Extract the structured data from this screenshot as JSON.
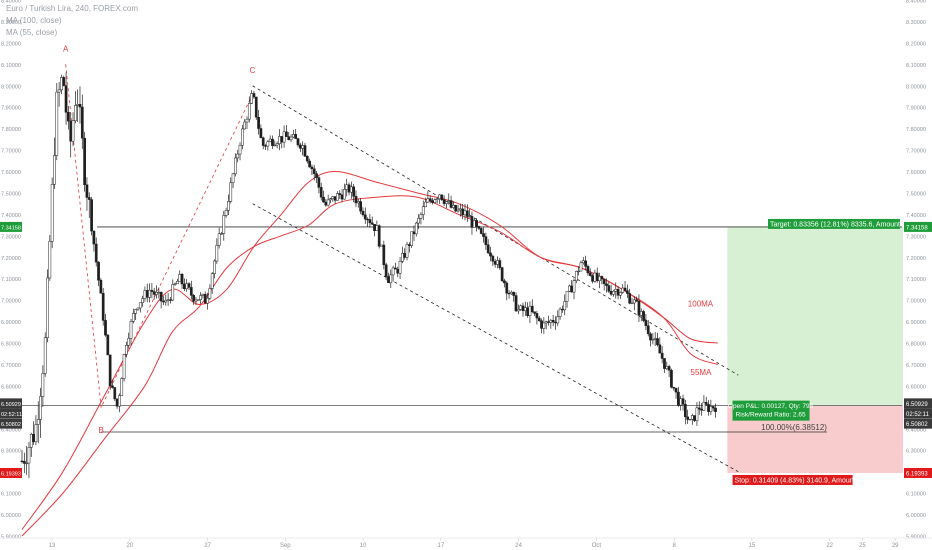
{
  "legend": {
    "symbol": "Euro / Turkish Lira, 240, FOREX.com",
    "ma1": "MA (100, close)",
    "ma2": "MA (55, close)"
  },
  "colors": {
    "candle": "#1f1f1f",
    "ma": "#e8383d",
    "target_fill": "#d7efd3",
    "stop_fill": "#f8cccc",
    "target_label": "#1f9d3a",
    "stop_label": "#e0191b",
    "axis_text": "#8d939a"
  },
  "chart_data": {
    "type": "candlestick",
    "symbol": "Euro / Turkish Lira, 240, FOREX.com",
    "ylim": [
      5.9,
      8.4
    ],
    "y_ticks": [
      "8.40000",
      "8.30000",
      "8.20000",
      "8.10000",
      "8.00000",
      "7.90000",
      "7.80000",
      "7.70000",
      "7.60000",
      "7.50000",
      "7.40000",
      "7.30000",
      "7.20000",
      "7.10000",
      "7.00000",
      "6.90000",
      "6.80000",
      "6.70000",
      "6.60000",
      "6.50000",
      "6.40000",
      "6.30000",
      "6.20000",
      "6.10000",
      "6.00000",
      "5.90000"
    ],
    "x_ticks": [
      "13",
      "20",
      "27",
      "Sep",
      "10",
      "17",
      "24",
      "Oct",
      "8",
      "15",
      "22",
      "25",
      "29"
    ],
    "price_path": [
      {
        "t": 0.0,
        "p": 6.25
      },
      {
        "t": 1.0,
        "p": 6.4
      },
      {
        "t": 1.7,
        "p": 6.8
      },
      {
        "t": 2.5,
        "p": 7.9
      },
      {
        "t": 3.0,
        "p": 8.05
      },
      {
        "t": 3.5,
        "p": 7.7
      },
      {
        "t": 4.0,
        "p": 8.0
      },
      {
        "t": 4.6,
        "p": 7.6
      },
      {
        "t": 5.2,
        "p": 7.3
      },
      {
        "t": 6.0,
        "p": 6.9
      },
      {
        "t": 6.5,
        "p": 6.6
      },
      {
        "t": 7.0,
        "p": 6.5
      },
      {
        "t": 7.6,
        "p": 6.8
      },
      {
        "t": 8.4,
        "p": 6.98
      },
      {
        "t": 9.4,
        "p": 7.05
      },
      {
        "t": 10.5,
        "p": 6.98
      },
      {
        "t": 11.5,
        "p": 7.1
      },
      {
        "t": 12.5,
        "p": 7.02
      },
      {
        "t": 13.5,
        "p": 7.0
      },
      {
        "t": 14.5,
        "p": 7.3
      },
      {
        "t": 15.2,
        "p": 7.5
      },
      {
        "t": 16.0,
        "p": 7.75
      },
      {
        "t": 16.9,
        "p": 7.96
      },
      {
        "t": 17.6,
        "p": 7.72
      },
      {
        "t": 18.4,
        "p": 7.75
      },
      {
        "t": 19.5,
        "p": 7.76
      },
      {
        "t": 20.5,
        "p": 7.73
      },
      {
        "t": 21.5,
        "p": 7.58
      },
      {
        "t": 22.2,
        "p": 7.44
      },
      {
        "t": 23.0,
        "p": 7.48
      },
      {
        "t": 24.0,
        "p": 7.52
      },
      {
        "t": 25.0,
        "p": 7.42
      },
      {
        "t": 26.0,
        "p": 7.33
      },
      {
        "t": 26.8,
        "p": 7.1
      },
      {
        "t": 27.6,
        "p": 7.15
      },
      {
        "t": 28.6,
        "p": 7.3
      },
      {
        "t": 29.6,
        "p": 7.45
      },
      {
        "t": 30.6,
        "p": 7.5
      },
      {
        "t": 31.6,
        "p": 7.42
      },
      {
        "t": 32.6,
        "p": 7.4
      },
      {
        "t": 33.6,
        "p": 7.3
      },
      {
        "t": 34.6,
        "p": 7.2
      },
      {
        "t": 35.6,
        "p": 7.05
      },
      {
        "t": 36.4,
        "p": 6.95
      },
      {
        "t": 37.2,
        "p": 6.95
      },
      {
        "t": 38.2,
        "p": 6.88
      },
      {
        "t": 39.2,
        "p": 6.92
      },
      {
        "t": 40.2,
        "p": 7.05
      },
      {
        "t": 41.0,
        "p": 7.18
      },
      {
        "t": 42.0,
        "p": 7.1
      },
      {
        "t": 43.0,
        "p": 7.05
      },
      {
        "t": 44.0,
        "p": 7.05
      },
      {
        "t": 45.0,
        "p": 6.98
      },
      {
        "t": 46.0,
        "p": 6.85
      },
      {
        "t": 47.0,
        "p": 6.72
      },
      {
        "t": 48.0,
        "p": 6.55
      },
      {
        "t": 49.0,
        "p": 6.42
      },
      {
        "t": 49.6,
        "p": 6.5
      },
      {
        "t": 50.4,
        "p": 6.5
      },
      {
        "t": 51.0,
        "p": 6.51
      }
    ],
    "ma55": [
      [
        0,
        5.93
      ],
      [
        3,
        6.2
      ],
      [
        6,
        6.55
      ],
      [
        9,
        6.9
      ],
      [
        11,
        7.05
      ],
      [
        13,
        6.98
      ],
      [
        15,
        7.05
      ],
      [
        17,
        7.25
      ],
      [
        19,
        7.4
      ],
      [
        21,
        7.55
      ],
      [
        23,
        7.6
      ],
      [
        26,
        7.55
      ],
      [
        29,
        7.5
      ],
      [
        32,
        7.45
      ],
      [
        35,
        7.35
      ],
      [
        38,
        7.2
      ],
      [
        41,
        7.15
      ],
      [
        44,
        7.05
      ],
      [
        47,
        6.92
      ],
      [
        49,
        6.75
      ],
      [
        51,
        6.7
      ]
    ],
    "ma100": [
      [
        0,
        5.9
      ],
      [
        3,
        6.1
      ],
      [
        6,
        6.35
      ],
      [
        9,
        6.6
      ],
      [
        11,
        6.85
      ],
      [
        13,
        6.97
      ],
      [
        15,
        7.15
      ],
      [
        17,
        7.25
      ],
      [
        19,
        7.3
      ],
      [
        21,
        7.35
      ],
      [
        23,
        7.45
      ],
      [
        26,
        7.48
      ],
      [
        29,
        7.48
      ],
      [
        32,
        7.4
      ],
      [
        35,
        7.32
      ],
      [
        38,
        7.2
      ],
      [
        41,
        7.15
      ],
      [
        44,
        7.05
      ],
      [
        47,
        6.92
      ],
      [
        49,
        6.82
      ],
      [
        51,
        6.8
      ]
    ],
    "channel_upper": [
      [
        16.9,
        8.0
      ],
      [
        52.5,
        6.65
      ]
    ],
    "channel_lower": [
      [
        16.9,
        7.45
      ],
      [
        52.5,
        6.2
      ]
    ],
    "drawing_ac": [
      [
        3.2,
        8.1
      ],
      [
        5.8,
        6.5
      ],
      [
        16.9,
        7.96
      ]
    ],
    "point_labels": [
      {
        "text": "A",
        "t": 3.2,
        "p": 8.16
      },
      {
        "text": "B",
        "t": 5.8,
        "p": 6.38
      },
      {
        "text": "C",
        "t": 16.9,
        "p": 8.06
      }
    ],
    "ma_labels": [
      {
        "text": "100MA",
        "t": 48.8,
        "p": 6.97
      },
      {
        "text": "55MA",
        "t": 49.0,
        "p": 6.65
      }
    ],
    "last_price": "6.50929",
    "countdown": "02:52:11",
    "entry_price": "6.50802",
    "target_price": "7.34158",
    "stop_price": "6.19393",
    "hline_low": "6.38512",
    "fib_label": "100.00%(6.38512)",
    "target_label": "Target: 0.83356 (12.81%) 8335.6, Amount: 1662.68",
    "open_pnl_label": "Open P&L: 0.00127, Qty: 795",
    "risk_reward_label": "Risk/Reward Ratio: 2.65",
    "stop_label": "Stop: 0.31409 (4.83%) 3140.9, Amount: 750.3"
  }
}
